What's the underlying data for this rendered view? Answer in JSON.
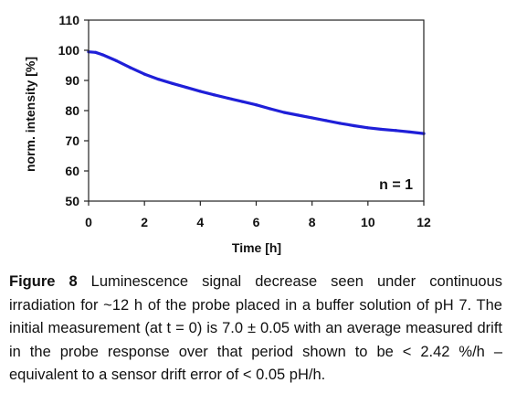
{
  "chart_data": {
    "type": "line",
    "title": "",
    "xlabel": "Time [h]",
    "ylabel": "norm. intensity [%]",
    "xlim": [
      0,
      12
    ],
    "ylim": [
      50,
      110
    ],
    "xticks": [
      "0",
      "2",
      "4",
      "6",
      "8",
      "10",
      "12"
    ],
    "yticks": [
      "50",
      "60",
      "70",
      "80",
      "90",
      "100",
      "110"
    ],
    "grid": false,
    "legend": "none",
    "annotation": "n = 1",
    "series": [
      {
        "color": "#1f1fd8",
        "x": [
          0,
          0.25,
          0.5,
          1,
          1.5,
          2,
          2.5,
          3,
          3.5,
          4,
          4.5,
          5,
          5.5,
          6,
          6.5,
          7,
          7.5,
          8,
          8.5,
          9,
          9.5,
          10,
          10.5,
          11,
          11.5,
          12
        ],
        "y": [
          99.5,
          99.3,
          98.5,
          96.5,
          94.2,
          92.1,
          90.4,
          89.0,
          87.7,
          86.4,
          85.2,
          84.1,
          83.0,
          81.9,
          80.6,
          79.4,
          78.5,
          77.6,
          76.7,
          75.8,
          75.0,
          74.3,
          73.8,
          73.4,
          72.9,
          72.4
        ]
      }
    ]
  },
  "caption": {
    "label": "Figure 8",
    "text": " Luminescence signal decrease seen under continuous irradiation for ~12 h of the probe placed in a buffer solution of pH 7.  The initial measurement (at t = 0) is 7.0 ± 0.05 with an average measured drift in the probe response over that period shown to be < 2.42 %/h – equivalent to a sensor drift error of < 0.05 pH/h."
  }
}
